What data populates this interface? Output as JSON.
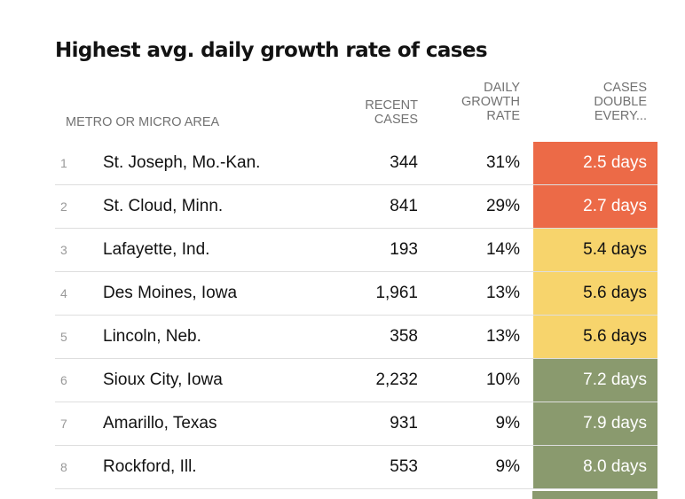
{
  "title": "Highest avg. daily growth rate of cases",
  "headers": {
    "area": "METRO OR MICRO AREA",
    "cases": "RECENT\nCASES",
    "rate": "DAILY\nGROWTH\nRATE",
    "double": "CASES\nDOUBLE\nEVERY..."
  },
  "colors": {
    "red": "#ec6a47",
    "yellow": "#f7d46c",
    "green": "#8a9a6e",
    "text_dark": "#121212",
    "text_light": "#ffffff"
  },
  "chart_data": {
    "type": "table",
    "title": "Highest avg. daily growth rate of cases",
    "columns": [
      "",
      "METRO OR MICRO AREA",
      "RECENT CASES",
      "DAILY GROWTH RATE",
      "CASES DOUBLE EVERY..."
    ],
    "rows": [
      {
        "rank": "1",
        "area": "St. Joseph, Mo.-Kan.",
        "cases": "344",
        "rate": "31%",
        "double": "2.5 days",
        "tier": "red"
      },
      {
        "rank": "2",
        "area": "St. Cloud, Minn.",
        "cases": "841",
        "rate": "29%",
        "double": "2.7 days",
        "tier": "red"
      },
      {
        "rank": "3",
        "area": "Lafayette, Ind.",
        "cases": "193",
        "rate": "14%",
        "double": "5.4 days",
        "tier": "yellow"
      },
      {
        "rank": "4",
        "area": "Des Moines, Iowa",
        "cases": "1,961",
        "rate": "13%",
        "double": "5.6 days",
        "tier": "yellow"
      },
      {
        "rank": "5",
        "area": "Lincoln, Neb.",
        "cases": "358",
        "rate": "13%",
        "double": "5.6 days",
        "tier": "yellow"
      },
      {
        "rank": "6",
        "area": "Sioux City, Iowa",
        "cases": "2,232",
        "rate": "10%",
        "double": "7.2 days",
        "tier": "green"
      },
      {
        "rank": "7",
        "area": "Amarillo, Texas",
        "cases": "931",
        "rate": "9%",
        "double": "7.9 days",
        "tier": "green"
      },
      {
        "rank": "8",
        "area": "Rockford, Ill.",
        "cases": "553",
        "rate": "9%",
        "double": "8.0 days",
        "tier": "green"
      }
    ]
  }
}
